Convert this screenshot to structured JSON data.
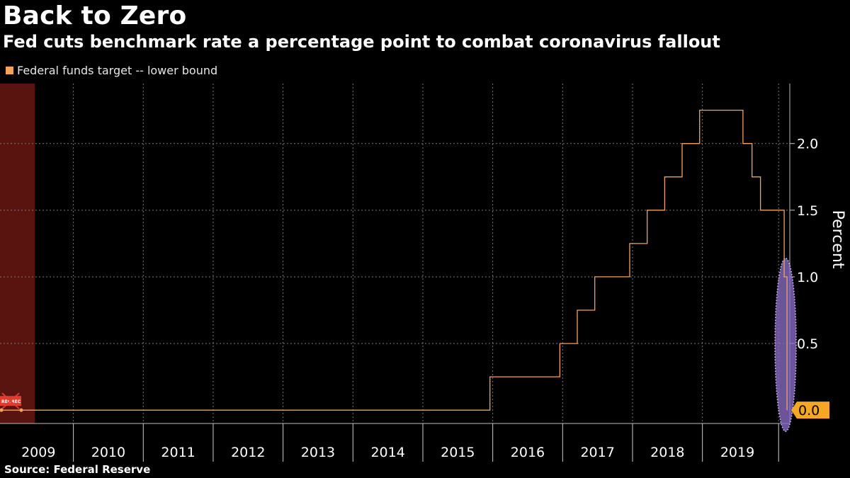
{
  "header": {
    "title": "Back to Zero",
    "subtitle": "Fed cuts benchmark rate a percentage point to combat coronavirus fallout"
  },
  "footer": {
    "source": "Source: Federal Reserve"
  },
  "colors": {
    "background": "#000000",
    "series": "#f5a25a",
    "grid": "#7a7a7a",
    "recession": "#5a1410",
    "highlight": "#8a6cc7",
    "last_value_bg": "#f5a623"
  },
  "chart_data": {
    "type": "line",
    "title": "Back to Zero",
    "subtitle": "Fed cuts benchmark rate a percentage point to combat coronavirus fallout",
    "xlabel": "",
    "ylabel": "Percent",
    "ylim": [
      -0.1,
      2.45
    ],
    "yticks": [
      0.5,
      1.0,
      1.5,
      2.0
    ],
    "ytick_labels": [
      "0.5",
      "1.0",
      "1.5",
      "2.0"
    ],
    "xlim": [
      2008.95,
      2020.25
    ],
    "xticks": [
      2009,
      2010,
      2011,
      2012,
      2013,
      2014,
      2015,
      2016,
      2017,
      2018,
      2019
    ],
    "xtick_labels": [
      "2009",
      "2010",
      "2011",
      "2012",
      "2013",
      "2014",
      "2015",
      "2016",
      "2017",
      "2018",
      "2019"
    ],
    "grid": true,
    "legend": "top-left",
    "series": [
      {
        "name": "Federal funds target -- lower bound",
        "x": [
          2008.95,
          2015.96,
          2015.96,
          2016.96,
          2016.96,
          2017.21,
          2017.21,
          2017.46,
          2017.46,
          2017.96,
          2017.96,
          2018.21,
          2018.21,
          2018.46,
          2018.46,
          2018.71,
          2018.71,
          2018.96,
          2018.96,
          2019.58,
          2019.58,
          2019.71,
          2019.71,
          2019.83,
          2019.83,
          2020.17,
          2020.17,
          2020.21,
          2020.21
        ],
        "values": [
          0.0,
          0.0,
          0.25,
          0.25,
          0.5,
          0.5,
          0.75,
          0.75,
          1.0,
          1.0,
          1.25,
          1.25,
          1.5,
          1.5,
          1.75,
          1.75,
          2.0,
          2.0,
          2.25,
          2.25,
          2.0,
          2.0,
          1.75,
          1.75,
          1.5,
          1.5,
          1.0,
          1.0,
          0.0
        ]
      }
    ],
    "last_value_label": "0.0",
    "recession": {
      "start": 2008.95,
      "end": 2009.45,
      "labels": [
        "REC",
        "REC"
      ]
    },
    "highlight": {
      "x": 2020.19,
      "y_center": 0.5,
      "y_span": [
        -0.16,
        1.14
      ]
    }
  }
}
